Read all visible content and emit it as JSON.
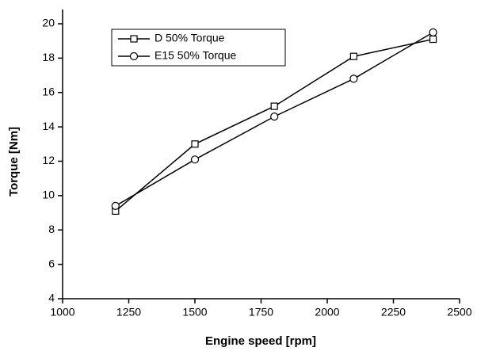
{
  "chart_data": {
    "type": "line",
    "x_label": "Engine speed [rpm]",
    "y_label": "Torque [Nm]",
    "x": [
      1200,
      1500,
      1800,
      2100,
      2400
    ],
    "series": [
      {
        "name": "D 50% Torque",
        "color": "#000000",
        "marker": "square",
        "values": [
          9.1,
          13.0,
          15.2,
          18.1,
          19.1
        ]
      },
      {
        "name": "E15 50% Torque",
        "color": "#000000",
        "marker": "circle",
        "values": [
          9.4,
          12.1,
          14.6,
          16.8,
          19.5
        ]
      }
    ],
    "xlim": [
      1000,
      2500
    ],
    "xticks": [
      1000,
      1250,
      1500,
      1750,
      2000,
      2250,
      2500
    ],
    "ylim": [
      4,
      20
    ],
    "yticks": [
      4,
      6,
      8,
      10,
      12,
      14,
      16,
      18,
      20
    ],
    "grid": false,
    "legend": "upper left"
  }
}
